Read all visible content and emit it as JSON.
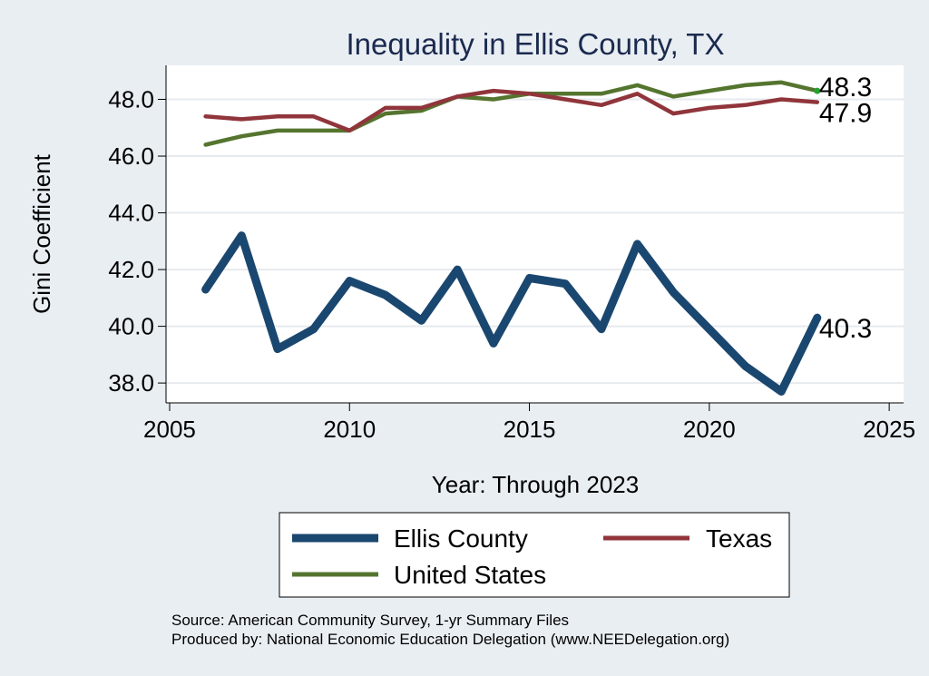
{
  "chart_data": {
    "type": "line",
    "title": "Inequality in Ellis County, TX",
    "xlabel": "Year: Through 2023",
    "ylabel": "Gini Coefficient",
    "xlim": [
      2004.9,
      2025.4
    ],
    "ylim": [
      37.3,
      49.2
    ],
    "xticks": [
      2005,
      2010,
      2015,
      2020,
      2025
    ],
    "yticks": [
      38,
      40,
      42,
      44,
      46,
      48
    ],
    "ytick_labels": [
      "38.0",
      "40.0",
      "42.0",
      "44.0",
      "46.0",
      "48.0"
    ],
    "grid": true,
    "x": [
      2006,
      2007,
      2008,
      2009,
      2010,
      2011,
      2012,
      2013,
      2014,
      2015,
      2016,
      2017,
      2018,
      2019,
      2020,
      2021,
      2022,
      2023
    ],
    "series": [
      {
        "name": "Ellis County",
        "color": "#1a476f",
        "values": [
          41.3,
          43.2,
          39.2,
          39.9,
          41.6,
          41.1,
          40.2,
          42.0,
          39.4,
          41.7,
          41.5,
          39.9,
          42.9,
          41.2,
          39.9,
          38.6,
          37.7,
          40.3
        ],
        "end_label": "40.3"
      },
      {
        "name": "Texas",
        "color": "#90353b",
        "values": [
          47.4,
          47.3,
          47.4,
          47.4,
          46.9,
          47.7,
          47.7,
          48.1,
          48.3,
          48.2,
          48.0,
          47.8,
          48.2,
          47.5,
          47.7,
          47.8,
          48.0,
          47.9
        ],
        "end_label": "47.9"
      },
      {
        "name": "United States",
        "color": "#55752f",
        "values": [
          46.4,
          46.7,
          46.9,
          46.9,
          46.9,
          47.5,
          47.6,
          48.1,
          48.0,
          48.2,
          48.2,
          48.2,
          48.5,
          48.1,
          48.3,
          48.5,
          48.6,
          48.3
        ],
        "end_label": "48.3"
      }
    ],
    "legend": {
      "placement": "bottom"
    },
    "source_lines": [
      "Source: American Community Survey, 1-yr Summary Files",
      "Produced by: National Economic Education Delegation (www.NEEDelegation.org)"
    ]
  }
}
